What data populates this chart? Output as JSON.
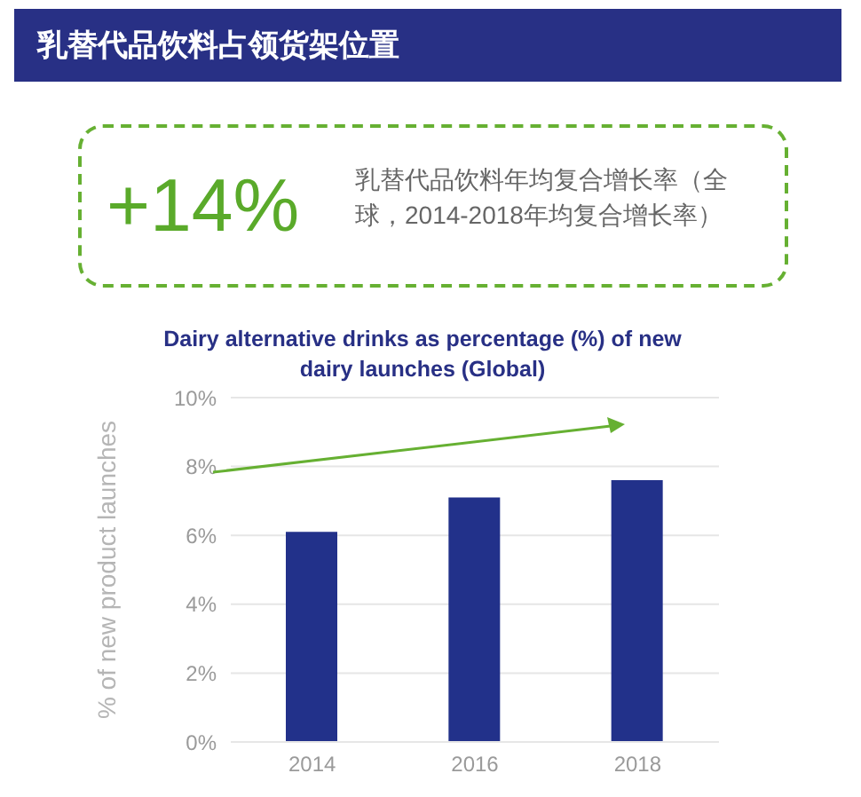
{
  "chart_data": {
    "type": "bar",
    "title": "乳替代品饮料占领货架位置",
    "subtitle": "Dairy alternative drinks as percentage (%) of new dairy launches (Global)",
    "ylabel": "% of new product launches",
    "annotations": [
      "+14%",
      "乳替代品饮料年均复合增长率（全球，2014-2018年均复合增长率）"
    ],
    "categories": [
      "2014",
      "2016",
      "2018"
    ],
    "values": [
      6.1,
      7.1,
      7.6
    ],
    "color": "#22318a",
    "ylim": [
      0,
      10
    ],
    "yticks": [
      {
        "value": 0,
        "label": "0%"
      },
      {
        "value": 2,
        "label": "2%"
      },
      {
        "value": 4,
        "label": "4%"
      },
      {
        "value": 6,
        "label": "6%"
      },
      {
        "value": 8,
        "label": "8%"
      },
      {
        "value": 10,
        "label": "10%"
      }
    ],
    "grid": "y"
  }
}
